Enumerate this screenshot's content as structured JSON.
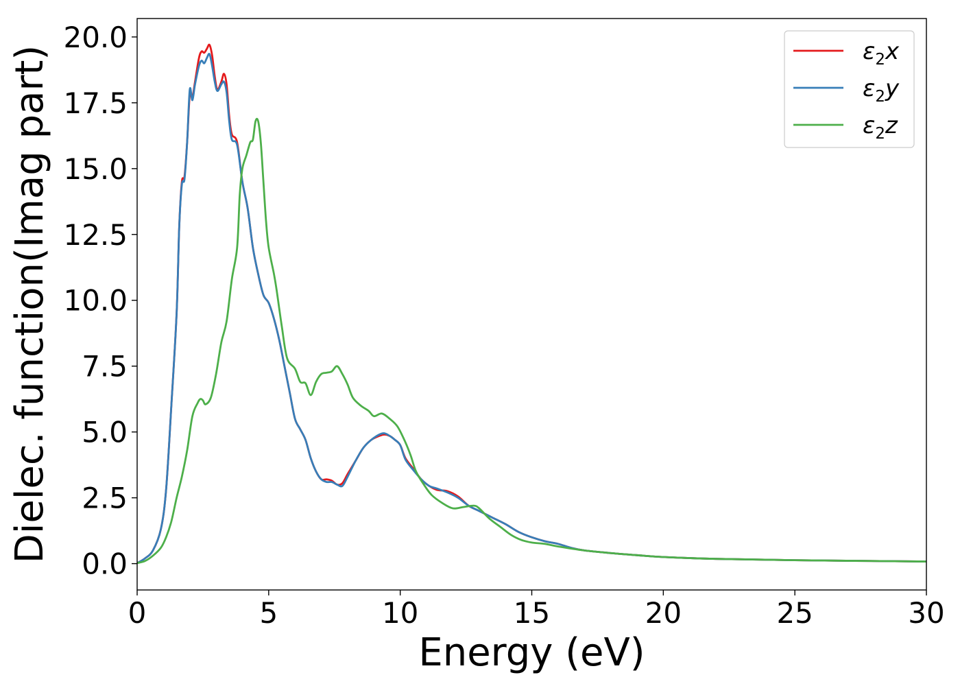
{
  "chart_data": {
    "type": "line",
    "title": "",
    "xlabel": "Energy (eV)",
    "ylabel": "Dielec. function(Imag part)",
    "xlim": [
      0,
      30
    ],
    "ylim": [
      -1.0,
      20.7
    ],
    "grid": false,
    "legend_position": "top-right",
    "x_ticks": [
      0,
      5,
      10,
      15,
      20,
      25,
      30
    ],
    "y_ticks": [
      0.0,
      2.5,
      5.0,
      7.5,
      10.0,
      12.5,
      15.0,
      17.5,
      20.0
    ],
    "x_tick_labels": [
      "0",
      "5",
      "10",
      "15",
      "20",
      "25",
      "30"
    ],
    "y_tick_labels": [
      "0.0",
      "2.5",
      "5.0",
      "7.5",
      "10.0",
      "12.5",
      "15.0",
      "17.5",
      "20.0"
    ],
    "series": [
      {
        "name": "ε₂x",
        "legend": {
          "base": "ε",
          "sub": "2",
          "var": "x"
        },
        "color": "#e41a1c",
        "points": [
          [
            0,
            0.02
          ],
          [
            0.3,
            0.2
          ],
          [
            0.6,
            0.5
          ],
          [
            0.9,
            1.3
          ],
          [
            1.1,
            2.8
          ],
          [
            1.3,
            6.0
          ],
          [
            1.5,
            9.5
          ],
          [
            1.6,
            12.8
          ],
          [
            1.7,
            14.5
          ],
          [
            1.8,
            14.7
          ],
          [
            1.9,
            16.0
          ],
          [
            2.0,
            17.8
          ],
          [
            2.1,
            17.7
          ],
          [
            2.2,
            18.3
          ],
          [
            2.35,
            19.2
          ],
          [
            2.45,
            19.45
          ],
          [
            2.55,
            19.4
          ],
          [
            2.65,
            19.55
          ],
          [
            2.75,
            19.7
          ],
          [
            2.85,
            19.3
          ],
          [
            2.95,
            18.5
          ],
          [
            3.05,
            18.0
          ],
          [
            3.2,
            18.3
          ],
          [
            3.3,
            18.6
          ],
          [
            3.4,
            18.2
          ],
          [
            3.5,
            17.0
          ],
          [
            3.6,
            16.3
          ],
          [
            3.8,
            16.0
          ],
          [
            4.0,
            14.5
          ],
          [
            4.2,
            13.5
          ],
          [
            4.4,
            12.0
          ],
          [
            4.6,
            11.0
          ],
          [
            4.8,
            10.2
          ],
          [
            5.0,
            9.9
          ],
          [
            5.2,
            9.3
          ],
          [
            5.4,
            8.5
          ],
          [
            5.6,
            7.5
          ],
          [
            5.8,
            6.5
          ],
          [
            6.0,
            5.5
          ],
          [
            6.2,
            5.1
          ],
          [
            6.4,
            4.7
          ],
          [
            6.6,
            4.0
          ],
          [
            6.8,
            3.5
          ],
          [
            7.0,
            3.2
          ],
          [
            7.2,
            3.2
          ],
          [
            7.4,
            3.15
          ],
          [
            7.6,
            3.0
          ],
          [
            7.8,
            3.05
          ],
          [
            8.0,
            3.4
          ],
          [
            8.3,
            3.9
          ],
          [
            8.6,
            4.4
          ],
          [
            8.9,
            4.7
          ],
          [
            9.2,
            4.85
          ],
          [
            9.4,
            4.9
          ],
          [
            9.6,
            4.85
          ],
          [
            9.8,
            4.7
          ],
          [
            10.0,
            4.5
          ],
          [
            10.2,
            4.0
          ],
          [
            10.5,
            3.6
          ],
          [
            10.8,
            3.2
          ],
          [
            11.1,
            2.95
          ],
          [
            11.4,
            2.8
          ],
          [
            11.8,
            2.75
          ],
          [
            12.2,
            2.55
          ],
          [
            12.6,
            2.2
          ],
          [
            13.0,
            2.0
          ],
          [
            13.5,
            1.75
          ],
          [
            14.0,
            1.5
          ],
          [
            14.5,
            1.2
          ],
          [
            15.0,
            1.0
          ],
          [
            15.5,
            0.85
          ],
          [
            16.0,
            0.75
          ],
          [
            16.5,
            0.6
          ],
          [
            17.0,
            0.5
          ],
          [
            18.0,
            0.4
          ],
          [
            19.0,
            0.32
          ],
          [
            20.0,
            0.25
          ],
          [
            22.0,
            0.18
          ],
          [
            25.0,
            0.13
          ],
          [
            30.0,
            0.08
          ]
        ]
      },
      {
        "name": "ε₂y",
        "legend": {
          "base": "ε",
          "sub": "2",
          "var": "y"
        },
        "color": "#377eb8",
        "points": [
          [
            0,
            0.02
          ],
          [
            0.3,
            0.2
          ],
          [
            0.6,
            0.5
          ],
          [
            0.9,
            1.3
          ],
          [
            1.1,
            2.8
          ],
          [
            1.3,
            6.0
          ],
          [
            1.5,
            9.5
          ],
          [
            1.6,
            12.8
          ],
          [
            1.7,
            14.4
          ],
          [
            1.8,
            14.6
          ],
          [
            1.9,
            16.0
          ],
          [
            2.0,
            18.0
          ],
          [
            2.1,
            17.6
          ],
          [
            2.2,
            18.2
          ],
          [
            2.35,
            18.9
          ],
          [
            2.45,
            19.1
          ],
          [
            2.55,
            19.0
          ],
          [
            2.65,
            19.2
          ],
          [
            2.75,
            19.35
          ],
          [
            2.85,
            18.9
          ],
          [
            2.95,
            18.3
          ],
          [
            3.05,
            17.95
          ],
          [
            3.2,
            18.2
          ],
          [
            3.3,
            18.3
          ],
          [
            3.4,
            17.9
          ],
          [
            3.5,
            16.8
          ],
          [
            3.6,
            16.1
          ],
          [
            3.8,
            15.9
          ],
          [
            4.0,
            14.5
          ],
          [
            4.2,
            13.5
          ],
          [
            4.4,
            12.0
          ],
          [
            4.6,
            11.0
          ],
          [
            4.8,
            10.2
          ],
          [
            5.0,
            9.9
          ],
          [
            5.2,
            9.3
          ],
          [
            5.4,
            8.5
          ],
          [
            5.6,
            7.5
          ],
          [
            5.8,
            6.5
          ],
          [
            6.0,
            5.5
          ],
          [
            6.2,
            5.1
          ],
          [
            6.4,
            4.7
          ],
          [
            6.6,
            4.0
          ],
          [
            6.8,
            3.5
          ],
          [
            7.0,
            3.2
          ],
          [
            7.2,
            3.1
          ],
          [
            7.4,
            3.1
          ],
          [
            7.6,
            3.0
          ],
          [
            7.8,
            2.95
          ],
          [
            8.0,
            3.3
          ],
          [
            8.3,
            3.9
          ],
          [
            8.6,
            4.4
          ],
          [
            8.9,
            4.7
          ],
          [
            9.2,
            4.9
          ],
          [
            9.4,
            4.95
          ],
          [
            9.6,
            4.85
          ],
          [
            9.8,
            4.7
          ],
          [
            10.0,
            4.5
          ],
          [
            10.2,
            3.95
          ],
          [
            10.5,
            3.55
          ],
          [
            10.8,
            3.2
          ],
          [
            11.1,
            2.95
          ],
          [
            11.4,
            2.85
          ],
          [
            11.8,
            2.7
          ],
          [
            12.2,
            2.5
          ],
          [
            12.6,
            2.2
          ],
          [
            13.0,
            2.0
          ],
          [
            13.5,
            1.75
          ],
          [
            14.0,
            1.5
          ],
          [
            14.5,
            1.2
          ],
          [
            15.0,
            1.0
          ],
          [
            15.5,
            0.85
          ],
          [
            16.0,
            0.75
          ],
          [
            16.5,
            0.6
          ],
          [
            17.0,
            0.5
          ],
          [
            18.0,
            0.4
          ],
          [
            19.0,
            0.32
          ],
          [
            20.0,
            0.25
          ],
          [
            22.0,
            0.18
          ],
          [
            25.0,
            0.13
          ],
          [
            30.0,
            0.08
          ]
        ]
      },
      {
        "name": "ε₂z",
        "legend": {
          "base": "ε",
          "sub": "2",
          "var": "z"
        },
        "color": "#4daf4a",
        "points": [
          [
            0,
            0.02
          ],
          [
            0.3,
            0.1
          ],
          [
            0.6,
            0.3
          ],
          [
            0.9,
            0.6
          ],
          [
            1.1,
            1.0
          ],
          [
            1.3,
            1.6
          ],
          [
            1.5,
            2.5
          ],
          [
            1.7,
            3.3
          ],
          [
            1.9,
            4.3
          ],
          [
            2.1,
            5.6
          ],
          [
            2.3,
            6.1
          ],
          [
            2.4,
            6.25
          ],
          [
            2.5,
            6.2
          ],
          [
            2.6,
            6.05
          ],
          [
            2.8,
            6.3
          ],
          [
            3.0,
            7.2
          ],
          [
            3.2,
            8.4
          ],
          [
            3.4,
            9.2
          ],
          [
            3.6,
            10.8
          ],
          [
            3.8,
            12.0
          ],
          [
            3.9,
            14.0
          ],
          [
            4.0,
            15.0
          ],
          [
            4.15,
            15.5
          ],
          [
            4.3,
            16.0
          ],
          [
            4.4,
            16.1
          ],
          [
            4.5,
            16.8
          ],
          [
            4.6,
            16.8
          ],
          [
            4.7,
            16.0
          ],
          [
            4.8,
            14.5
          ],
          [
            4.9,
            13.0
          ],
          [
            5.0,
            12.0
          ],
          [
            5.2,
            11.0
          ],
          [
            5.3,
            10.4
          ],
          [
            5.5,
            9.0
          ],
          [
            5.7,
            7.8
          ],
          [
            6.0,
            7.4
          ],
          [
            6.2,
            6.9
          ],
          [
            6.4,
            6.85
          ],
          [
            6.6,
            6.4
          ],
          [
            6.8,
            6.9
          ],
          [
            7.0,
            7.2
          ],
          [
            7.2,
            7.25
          ],
          [
            7.4,
            7.3
          ],
          [
            7.6,
            7.5
          ],
          [
            7.8,
            7.2
          ],
          [
            8.0,
            6.8
          ],
          [
            8.2,
            6.3
          ],
          [
            8.5,
            6.0
          ],
          [
            8.8,
            5.8
          ],
          [
            9.0,
            5.6
          ],
          [
            9.3,
            5.7
          ],
          [
            9.6,
            5.5
          ],
          [
            9.9,
            5.2
          ],
          [
            10.2,
            4.6
          ],
          [
            10.4,
            4.1
          ],
          [
            10.6,
            3.5
          ],
          [
            10.9,
            3.0
          ],
          [
            11.2,
            2.6
          ],
          [
            11.6,
            2.3
          ],
          [
            12.0,
            2.1
          ],
          [
            12.4,
            2.15
          ],
          [
            12.8,
            2.2
          ],
          [
            13.0,
            2.1
          ],
          [
            13.4,
            1.7
          ],
          [
            13.8,
            1.4
          ],
          [
            14.2,
            1.1
          ],
          [
            14.6,
            0.9
          ],
          [
            15.0,
            0.8
          ],
          [
            15.5,
            0.75
          ],
          [
            16.0,
            0.65
          ],
          [
            17.0,
            0.5
          ],
          [
            18.0,
            0.4
          ],
          [
            19.0,
            0.32
          ],
          [
            20.0,
            0.25
          ],
          [
            22.0,
            0.18
          ],
          [
            25.0,
            0.13
          ],
          [
            30.0,
            0.08
          ]
        ]
      }
    ]
  }
}
